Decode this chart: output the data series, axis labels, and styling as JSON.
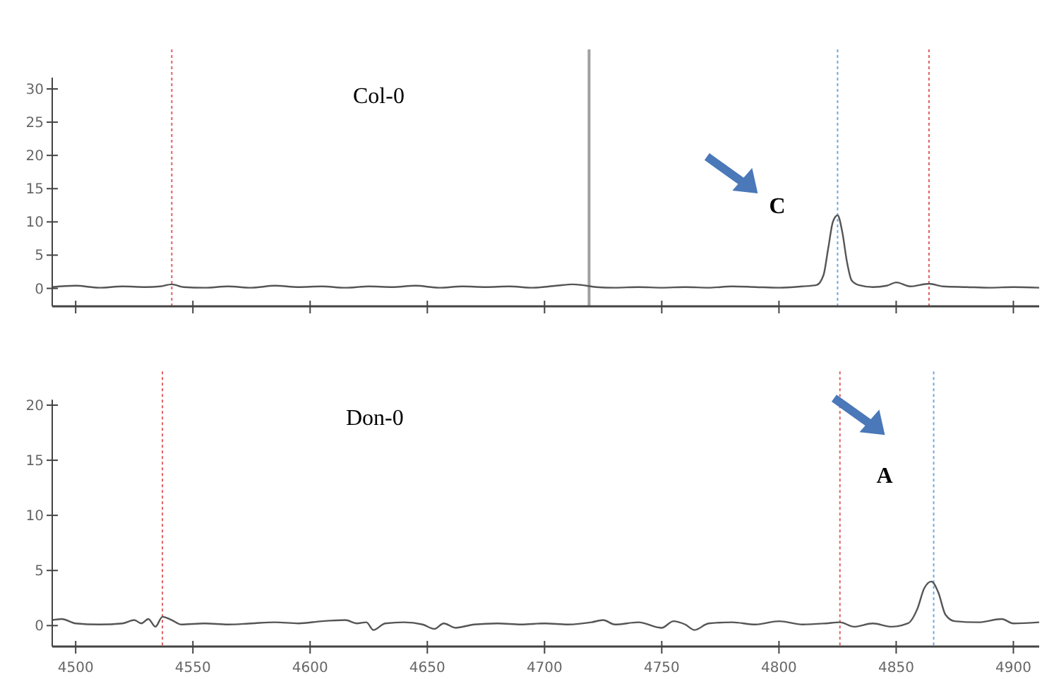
{
  "chart_data": [
    {
      "type": "line",
      "title": "Col-0",
      "annotations": [
        "C"
      ],
      "xlim": [
        4490,
        4911
      ],
      "ylim": [
        -2.7,
        31.7
      ],
      "xticks": [
        {
          "value": 4500,
          "label": null
        },
        {
          "value": 4550,
          "label": null
        },
        {
          "value": 4600,
          "label": null
        },
        {
          "value": 4650,
          "label": null
        },
        {
          "value": 4700,
          "label": null
        },
        {
          "value": 4750,
          "label": null
        },
        {
          "value": 4800,
          "label": null
        },
        {
          "value": 4850,
          "label": null
        },
        {
          "value": 4900,
          "label": null
        }
      ],
      "yticks": [
        0,
        5,
        10,
        15,
        20,
        25,
        30
      ],
      "tick_labels": "y",
      "grid": false,
      "marker": "none",
      "line_style": "solid",
      "ref_lines": [
        {
          "axis": "x",
          "value": 4541,
          "color": "#e06060",
          "line_style": "dotted"
        },
        {
          "axis": "x",
          "value": 4719,
          "color": "#a0a0a0",
          "line_style": "solid"
        },
        {
          "axis": "x",
          "value": 4825,
          "color": "#6fa8dc",
          "line_style": "dotted"
        },
        {
          "axis": "x",
          "value": 4864,
          "color": "#e06060",
          "line_style": "dotted"
        }
      ],
      "series": [
        {
          "color": "#555555",
          "x": [
            4490,
            4500,
            4510,
            4520,
            4530,
            4536,
            4541,
            4546,
            4555,
            4565,
            4575,
            4585,
            4595,
            4605,
            4615,
            4625,
            4635,
            4645,
            4655,
            4665,
            4675,
            4685,
            4695,
            4705,
            4712,
            4716,
            4722,
            4730,
            4740,
            4750,
            4760,
            4770,
            4780,
            4790,
            4800,
            4810,
            4816,
            4819,
            4821,
            4823,
            4825,
            4827,
            4829,
            4831,
            4834,
            4840,
            4846,
            4850,
            4856,
            4864,
            4870,
            4880,
            4890,
            4900,
            4911
          ],
          "values": [
            0.2,
            0.4,
            0.1,
            0.3,
            0.2,
            0.3,
            0.6,
            0.2,
            0.1,
            0.3,
            0.1,
            0.4,
            0.2,
            0.3,
            0.1,
            0.3,
            0.2,
            0.4,
            0.1,
            0.3,
            0.2,
            0.3,
            0.1,
            0.4,
            0.6,
            0.5,
            0.2,
            0.1,
            0.2,
            0.1,
            0.2,
            0.1,
            0.3,
            0.2,
            0.1,
            0.3,
            0.5,
            2,
            6,
            10,
            11,
            8.5,
            4,
            1.2,
            0.5,
            0.2,
            0.4,
            0.9,
            0.3,
            0.7,
            0.3,
            0.2,
            0.1,
            0.2,
            0.1
          ]
        }
      ]
    },
    {
      "type": "line",
      "title": "Don-0",
      "annotations": [
        "A"
      ],
      "xlim": [
        4490,
        4911
      ],
      "ylim": [
        -1.9,
        20.5
      ],
      "xticks": [
        4500,
        4550,
        4600,
        4650,
        4700,
        4750,
        4800,
        4850,
        4900
      ],
      "yticks": [
        0,
        5,
        10,
        15,
        20
      ],
      "grid": false,
      "marker": "none",
      "line_style": "solid",
      "ref_lines": [
        {
          "axis": "x",
          "value": 4537,
          "color": "#e06060",
          "line_style": "dotted"
        },
        {
          "axis": "x",
          "value": 4826,
          "color": "#e06060",
          "line_style": "dotted"
        },
        {
          "axis": "x",
          "value": 4866,
          "color": "#6fa8dc",
          "line_style": "dotted"
        }
      ],
      "series": [
        {
          "color": "#555555",
          "x": [
            4490,
            4494,
            4500,
            4510,
            4520,
            4525,
            4528,
            4531,
            4534,
            4537,
            4541,
            4545,
            4555,
            4565,
            4575,
            4585,
            4595,
            4605,
            4615,
            4620,
            4624,
            4627,
            4632,
            4640,
            4648,
            4653,
            4657,
            4662,
            4670,
            4680,
            4690,
            4700,
            4710,
            4720,
            4725,
            4730,
            4740,
            4750,
            4755,
            4760,
            4764,
            4770,
            4780,
            4790,
            4800,
            4810,
            4820,
            4826,
            4832,
            4840,
            4848,
            4855,
            4859,
            4862,
            4865,
            4868,
            4871,
            4875,
            4885,
            4895,
            4900,
            4911
          ],
          "values": [
            0.5,
            0.6,
            0.2,
            0.1,
            0.2,
            0.5,
            0.2,
            0.6,
            -0.1,
            0.8,
            0.5,
            0.1,
            0.2,
            0.1,
            0.2,
            0.3,
            0.2,
            0.4,
            0.5,
            0.2,
            0.3,
            -0.4,
            0.2,
            0.3,
            0.1,
            -0.3,
            0.2,
            -0.2,
            0.1,
            0.2,
            0.1,
            0.2,
            0.1,
            0.3,
            0.5,
            0.1,
            0.3,
            -0.2,
            0.4,
            0.1,
            -0.4,
            0.2,
            0.3,
            0.1,
            0.4,
            0.1,
            0.2,
            0.3,
            -0.1,
            0.2,
            -0.1,
            0.2,
            1.5,
            3.4,
            4,
            3,
            1,
            0.4,
            0.3,
            0.6,
            0.2,
            0.3
          ]
        }
      ]
    }
  ]
}
